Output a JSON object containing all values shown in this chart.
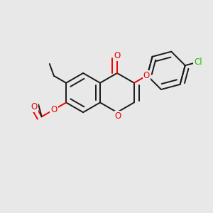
{
  "background_color": "#e8e8e8",
  "bond_color": "#1a1a1a",
  "o_color": "#ee0000",
  "cl_color": "#22bb00",
  "bond_width": 1.4,
  "dbo": 0.05,
  "font_size": 8.5,
  "figsize": [
    3.0,
    3.0
  ],
  "dpi": 100,
  "xlim": [
    -0.95,
    1.05
  ],
  "ylim": [
    -0.72,
    0.62
  ]
}
